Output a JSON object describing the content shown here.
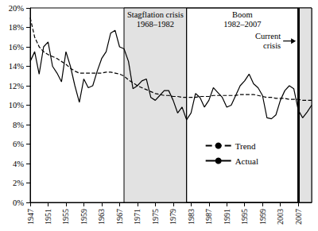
{
  "chart_data": {
    "type": "line",
    "x": [
      1947,
      1948,
      1949,
      1950,
      1951,
      1952,
      1953,
      1954,
      1955,
      1956,
      1957,
      1958,
      1959,
      1960,
      1961,
      1962,
      1963,
      1964,
      1965,
      1966,
      1967,
      1968,
      1969,
      1970,
      1971,
      1972,
      1973,
      1974,
      1975,
      1976,
      1977,
      1978,
      1979,
      1980,
      1981,
      1982,
      1983,
      1984,
      1985,
      1986,
      1987,
      1988,
      1989,
      1990,
      1991,
      1992,
      1993,
      1994,
      1995,
      1996,
      1997,
      1998,
      1999,
      2000,
      2001,
      2002,
      2003,
      2004,
      2005,
      2006,
      2007,
      2008,
      2009,
      2010
    ],
    "series": [
      {
        "name": "Trend",
        "color": "#000000",
        "line_style": "dashed",
        "values": [
          19,
          17,
          16,
          15.5,
          15.2,
          15,
          14.8,
          14.5,
          14.2,
          13.8,
          13.5,
          13.3,
          13.3,
          13.3,
          13.3,
          13.3,
          13.3,
          13.4,
          13.4,
          13.3,
          13.2,
          13,
          12.6,
          12.3,
          12,
          11.8,
          11.6,
          11.4,
          11.2,
          11.1,
          11,
          11,
          10.9,
          10.9,
          10.8,
          10.8,
          10.8,
          10.8,
          10.9,
          10.9,
          10.9,
          11,
          11,
          11,
          11,
          11,
          11,
          11.1,
          11.1,
          11.1,
          11.1,
          11,
          10.9,
          10.8,
          10.8,
          10.7,
          10.7,
          10.7,
          10.6,
          10.6,
          10.6,
          10.5,
          10.5,
          10.5
        ]
      },
      {
        "name": "Actual",
        "color": "#000000",
        "line_style": "solid",
        "values": [
          14.5,
          15.5,
          13.2,
          16,
          16.5,
          14,
          13.3,
          12.4,
          15.5,
          14,
          12,
          10.3,
          12.7,
          11.8,
          12,
          13.5,
          14.8,
          15.5,
          17.4,
          17.7,
          16,
          15.8,
          14.5,
          11.7,
          12,
          12.5,
          12.7,
          10.8,
          10.5,
          11,
          11.5,
          11.5,
          10.5,
          9.2,
          9.8,
          8.5,
          9.2,
          11.2,
          10.8,
          9.8,
          10.5,
          11.8,
          11.3,
          10.8,
          9.8,
          10,
          11,
          12,
          12.5,
          13.2,
          12.2,
          11.8,
          11,
          8.7,
          8.6,
          9,
          10.5,
          11.5,
          12,
          11.7,
          9.5,
          8.7,
          9.3,
          10
        ]
      }
    ],
    "xlim": [
      1947,
      2010
    ],
    "xticks": [
      1947,
      1951,
      1955,
      1959,
      1963,
      1967,
      1971,
      1975,
      1979,
      1983,
      1987,
      1991,
      1995,
      1999,
      2003,
      2007
    ],
    "ylim": [
      0,
      20
    ],
    "yticks": [
      {
        "value": 0,
        "label": "0%"
      },
      {
        "value": 2,
        "label": "2%"
      },
      {
        "value": 4,
        "label": "4%"
      },
      {
        "value": 6,
        "label": "6%"
      },
      {
        "value": 8,
        "label": "8%"
      },
      {
        "value": 10,
        "label": "10%"
      },
      {
        "value": 12,
        "label": "12%"
      },
      {
        "value": 14,
        "label": "14%"
      },
      {
        "value": 16,
        "label": "16%"
      },
      {
        "value": 18,
        "label": "18%"
      },
      {
        "value": 20,
        "label": "20%"
      }
    ],
    "grid": false,
    "legend": "lower right",
    "annotations": [
      {
        "text": [
          "Stagflation crisis",
          "1968–1982"
        ],
        "x_start": 1968,
        "x_end": 1982,
        "color": "#e2e2e2"
      },
      {
        "text": [
          "Boom",
          "1982–2007"
        ],
        "x_start": 1982,
        "x_end": 2007
      },
      {
        "text": [
          "Current",
          "crisis"
        ],
        "x_start": 2007,
        "x_end": 2010,
        "color": "#e2e2e2"
      }
    ]
  }
}
